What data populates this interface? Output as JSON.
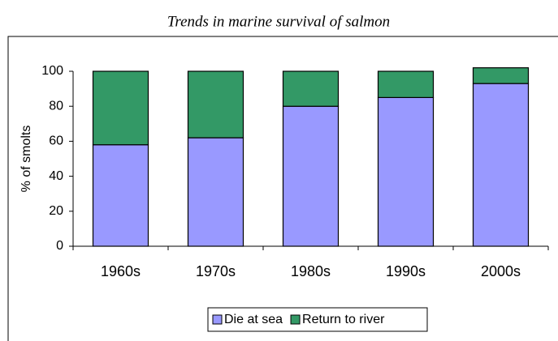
{
  "chart_data": {
    "type": "stacked_bar",
    "title": "Trends in marine survival of salmon",
    "y_label": "% of smolts",
    "categories": [
      "1960s",
      "1970s",
      "1980s",
      "1990s",
      "2000s"
    ],
    "series": [
      {
        "name": "Die at sea",
        "color": "#9999ff",
        "values": [
          58,
          62,
          80,
          85,
          93
        ]
      },
      {
        "name": "Return to river",
        "color": "#339966",
        "values": [
          42,
          38,
          20,
          15,
          9
        ]
      }
    ],
    "ylim": [
      0,
      100
    ],
    "yticks": [
      0,
      20,
      40,
      60,
      80,
      100
    ],
    "grid": false,
    "legend": "bottom"
  }
}
